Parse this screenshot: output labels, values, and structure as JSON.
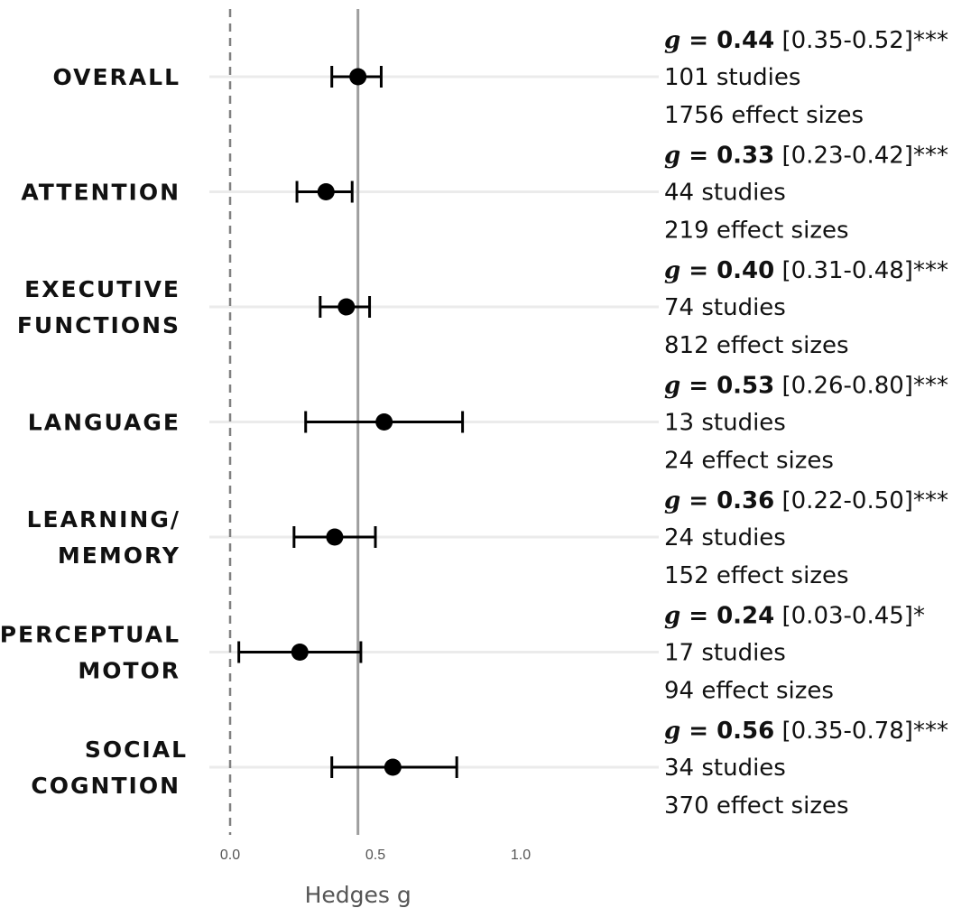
{
  "chart_data": {
    "type": "forest",
    "xlabel": "Hedges g",
    "xlim": [
      0,
      1.1
    ],
    "x_ticks": [
      {
        "value": 0.0,
        "label": "0.0"
      },
      {
        "value": 0.5,
        "label": "0.5"
      },
      {
        "value": 1.0,
        "label": "1.0"
      }
    ],
    "null_line": 0.0,
    "overall_line": 0.44,
    "grid": "horizontal",
    "rows": [
      {
        "label_lines": [
          "OVERALL"
        ],
        "g": 0.44,
        "ci_low": 0.35,
        "ci_high": 0.52,
        "g_text": "0.44",
        "ci_text": "[0.35-0.52]",
        "stars": "***",
        "studies": "101 studies",
        "effects": "1756 effect sizes"
      },
      {
        "label_lines": [
          "ATTENTION"
        ],
        "g": 0.33,
        "ci_low": 0.23,
        "ci_high": 0.42,
        "g_text": "0.33",
        "ci_text": "[0.23-0.42]",
        "stars": "***",
        "studies": "44 studies",
        "effects": "219 effect sizes"
      },
      {
        "label_lines": [
          "EXECUTIVE",
          "FUNCTIONS"
        ],
        "g": 0.4,
        "ci_low": 0.31,
        "ci_high": 0.48,
        "g_text": "0.40",
        "ci_text": "[0.31-0.48]",
        "stars": "***",
        "studies": "74 studies",
        "effects": "812 effect sizes"
      },
      {
        "label_lines": [
          "LANGUAGE"
        ],
        "g": 0.53,
        "ci_low": 0.26,
        "ci_high": 0.8,
        "g_text": "0.53",
        "ci_text": "[0.26-0.80]",
        "stars": "***",
        "studies": "13 studies",
        "effects": "24 effect sizes"
      },
      {
        "label_lines": [
          "LEARNING/",
          "MEMORY"
        ],
        "g": 0.36,
        "ci_low": 0.22,
        "ci_high": 0.5,
        "g_text": "0.36",
        "ci_text": "[0.22-0.50]",
        "stars": "***",
        "studies": "24 studies",
        "effects": "152 effect sizes"
      },
      {
        "label_lines": [
          "PERCEPTUAL",
          "MOTOR"
        ],
        "g": 0.24,
        "ci_low": 0.03,
        "ci_high": 0.45,
        "g_text": "0.24",
        "ci_text": "[0.03-0.45]",
        "stars": "*",
        "studies": "17 studies",
        "effects": "94 effect sizes"
      },
      {
        "label_lines": [
          "SOCIAL",
          "COGNTION"
        ],
        "g": 0.56,
        "ci_low": 0.35,
        "ci_high": 0.78,
        "g_text": "0.56",
        "ci_text": "[0.35-0.78]",
        "stars": "***",
        "studies": "34 studies",
        "effects": "370 effect sizes"
      }
    ],
    "colors": {
      "point": "#000000",
      "gridline": "#ebebeb",
      "null_line": "#808080",
      "overall_line": "#9e9e9e",
      "text": "#111111",
      "axis_text": "#555555"
    }
  }
}
